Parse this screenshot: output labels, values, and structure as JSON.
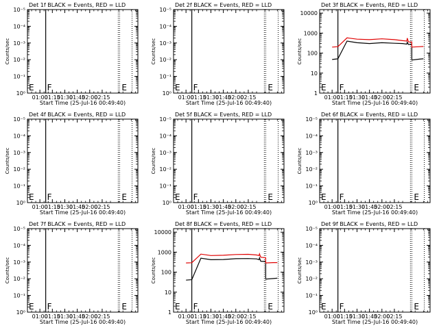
{
  "chart_data": [
    {
      "type": "line",
      "detector": "1f",
      "title": "Det 1f BLACK = Events, RED = LLD",
      "xlabel": "Start Time (25-Jul-16 00:49:40)",
      "ylabel": "Counts/sec",
      "x_ticks": [
        "01:00",
        "01:15",
        "01:30",
        "01:45",
        "02:00",
        "02:15"
      ],
      "y_scale": "log",
      "y_ticks": [
        "10⁰",
        "10⁻¹",
        "10⁻²",
        "10⁻³",
        "10⁻⁴",
        "10⁻⁵"
      ],
      "markers": [
        "F",
        "E"
      ],
      "series": []
    },
    {
      "type": "line",
      "detector": "2f",
      "title": "Det 2f BLACK = Events, RED = LLD",
      "xlabel": "Start Time (25-Jul-16 00:49:40)",
      "ylabel": "Counts/sec",
      "x_ticks": [
        "01:00",
        "01:15",
        "01:30",
        "01:45",
        "02:00",
        "02:15"
      ],
      "y_scale": "log",
      "y_ticks": [
        "10⁰",
        "10⁻¹",
        "10⁻²",
        "10⁻³",
        "10⁻⁴",
        "10⁻⁵"
      ],
      "markers": [
        "F",
        "E"
      ],
      "series": []
    },
    {
      "type": "line",
      "detector": "3f",
      "title": "Det 3f BLACK = Events, RED = LLD",
      "xlabel": "Start Time (25-Jul-16 00:49:40)",
      "ylabel": "Counts/sec",
      "x_ticks": [
        "01:00",
        "01:15",
        "01:30",
        "01:45",
        "02:00",
        "02:15"
      ],
      "y_scale": "log",
      "y_ticks": [
        "1",
        "10",
        "100",
        "1000",
        "10000"
      ],
      "y_range": [
        1,
        15000
      ],
      "markers": [
        "F",
        "E"
      ],
      "series": [
        {
          "color": "#000000",
          "x": [
            0,
            7,
            7,
            18,
            30,
            45,
            60,
            75,
            85,
            90,
            90.5,
            92,
            96,
            96,
            105,
            110
          ],
          "y": [
            48,
            52,
            52,
            400,
            330,
            300,
            330,
            310,
            300,
            280,
            350,
            270,
            280,
            45,
            50,
            52
          ]
        },
        {
          "color": "#e00000",
          "x": [
            0,
            7,
            7,
            18,
            30,
            45,
            60,
            75,
            85,
            90,
            90.5,
            92,
            96,
            96,
            105,
            110
          ],
          "y": [
            200,
            210,
            210,
            580,
            500,
            470,
            520,
            470,
            420,
            400,
            560,
            360,
            360,
            200,
            210,
            215
          ]
        }
      ]
    },
    {
      "type": "line",
      "detector": "4f",
      "title": "Det 4f BLACK = Events, RED = LLD",
      "xlabel": "Start Time (25-Jul-16 00:49:40)",
      "ylabel": "Counts/sec",
      "x_ticks": [
        "01:00",
        "01:15",
        "01:30",
        "01:45",
        "02:00",
        "02:15"
      ],
      "y_scale": "log",
      "y_ticks": [
        "10⁰",
        "10⁻¹",
        "10⁻²",
        "10⁻³",
        "10⁻⁴",
        "10⁻⁵"
      ],
      "markers": [
        "F",
        "E"
      ],
      "series": []
    },
    {
      "type": "line",
      "detector": "5f",
      "title": "Det 5f BLACK = Events, RED = LLD",
      "xlabel": "Start Time (25-Jul-16 00:49:40)",
      "ylabel": "Counts/sec",
      "x_ticks": [
        "01:00",
        "01:15",
        "01:30",
        "01:45",
        "02:00",
        "02:15"
      ],
      "y_scale": "log",
      "y_ticks": [
        "10⁰",
        "10⁻¹",
        "10⁻²",
        "10⁻³",
        "10⁻⁴",
        "10⁻⁵"
      ],
      "markers": [
        "F",
        "E"
      ],
      "series": []
    },
    {
      "type": "line",
      "detector": "6f",
      "title": "Det 6f BLACK = Events, RED = LLD",
      "xlabel": "Start Time (25-Jul-16 00:49:40)",
      "ylabel": "Counts/sec",
      "x_ticks": [
        "01:00",
        "01:15",
        "01:30",
        "01:45",
        "02:00",
        "02:15"
      ],
      "y_scale": "log",
      "y_ticks": [
        "10⁰",
        "10⁻¹",
        "10⁻²",
        "10⁻³",
        "10⁻⁴",
        "10⁻⁵"
      ],
      "markers": [
        "F",
        "E"
      ],
      "series": []
    },
    {
      "type": "line",
      "detector": "7f",
      "title": "Det 7f BLACK = Events, RED = LLD",
      "xlabel": "Start Time (25-Jul-16 00:49:40)",
      "ylabel": "Counts/sec",
      "x_ticks": [
        "01:00",
        "01:15",
        "01:30",
        "01:45",
        "02:00",
        "02:15"
      ],
      "y_scale": "log",
      "y_ticks": [
        "10⁰",
        "10⁻¹",
        "10⁻²",
        "10⁻³",
        "10⁻⁴",
        "10⁻⁵"
      ],
      "markers": [
        "F",
        "E"
      ],
      "series": []
    },
    {
      "type": "line",
      "detector": "8f",
      "title": "Det 8f BLACK = Events, RED = LLD",
      "xlabel": "Start Time (25-Jul-16 00:49:40)",
      "ylabel": "Counts/sec",
      "x_ticks": [
        "01:00",
        "01:15",
        "01:30",
        "01:45",
        "02:00",
        "02:15"
      ],
      "y_scale": "log",
      "y_ticks": [
        "1",
        "10",
        "100",
        "1000",
        "10000"
      ],
      "y_range": [
        1,
        15000
      ],
      "markers": [
        "F",
        "E"
      ],
      "series": [
        {
          "color": "#000000",
          "x": [
            0,
            7,
            7,
            18,
            30,
            45,
            60,
            75,
            85,
            88,
            88.5,
            90,
            96,
            96,
            105,
            110
          ],
          "y": [
            40,
            42,
            42,
            500,
            420,
            430,
            470,
            480,
            460,
            420,
            520,
            350,
            340,
            45,
            48,
            50
          ]
        },
        {
          "color": "#e00000",
          "x": [
            0,
            7,
            7,
            18,
            30,
            45,
            60,
            75,
            85,
            88,
            88.5,
            90,
            96,
            96,
            105,
            110
          ],
          "y": [
            290,
            295,
            295,
            800,
            680,
            700,
            760,
            780,
            720,
            680,
            820,
            560,
            520,
            290,
            300,
            300
          ]
        }
      ]
    },
    {
      "type": "line",
      "detector": "9f",
      "title": "Det 9f BLACK = Events, RED = LLD",
      "xlabel": "Start Time (25-Jul-16 00:49:40)",
      "ylabel": "Counts/sec",
      "x_ticks": [
        "01:00",
        "01:15",
        "01:30",
        "01:45",
        "02:00",
        "02:15"
      ],
      "y_scale": "log",
      "y_ticks": [
        "10⁰",
        "10⁻¹",
        "10⁻²",
        "10⁻³",
        "10⁻⁴",
        "10⁻⁵"
      ],
      "markers": [
        "F",
        "E"
      ],
      "series": []
    }
  ]
}
